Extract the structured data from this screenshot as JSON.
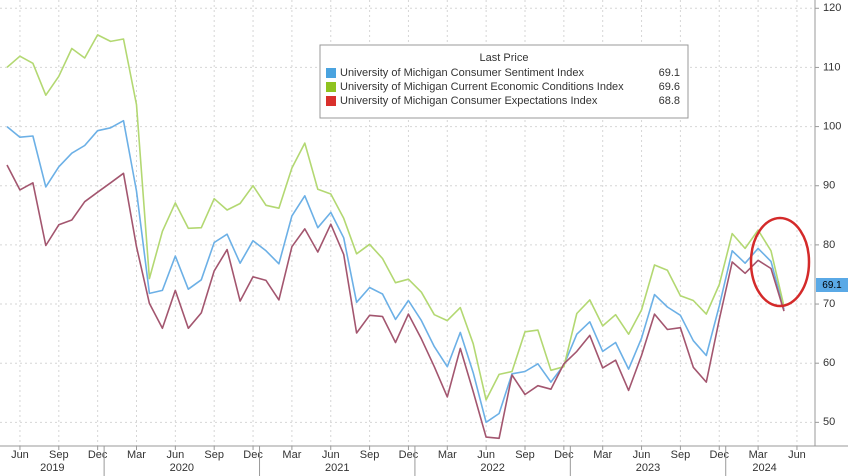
{
  "chart_data": {
    "type": "line",
    "legend_title": "Last Price",
    "x": [
      "2019-05",
      "2019-06",
      "2019-07",
      "2019-08",
      "2019-09",
      "2019-10",
      "2019-11",
      "2019-12",
      "2020-01",
      "2020-02",
      "2020-03",
      "2020-04",
      "2020-05",
      "2020-06",
      "2020-07",
      "2020-08",
      "2020-09",
      "2020-10",
      "2020-11",
      "2020-12",
      "2021-01",
      "2021-02",
      "2021-03",
      "2021-04",
      "2021-05",
      "2021-06",
      "2021-07",
      "2021-08",
      "2021-09",
      "2021-10",
      "2021-11",
      "2021-12",
      "2022-01",
      "2022-02",
      "2022-03",
      "2022-04",
      "2022-05",
      "2022-06",
      "2022-07",
      "2022-08",
      "2022-09",
      "2022-10",
      "2022-11",
      "2022-12",
      "2023-01",
      "2023-02",
      "2023-03",
      "2023-04",
      "2023-05",
      "2023-06",
      "2023-07",
      "2023-08",
      "2023-09",
      "2023-10",
      "2023-11",
      "2023-12",
      "2024-01",
      "2024-02",
      "2024-03",
      "2024-04",
      "2024-05"
    ],
    "series": [
      {
        "name": "University of Michigan Consumer Sentiment Index",
        "color": "#6cb0e6",
        "values": [
          100.0,
          98.2,
          98.4,
          89.8,
          93.2,
          95.5,
          96.8,
          99.3,
          99.8,
          101.0,
          89.1,
          71.8,
          72.3,
          78.1,
          72.5,
          74.1,
          80.4,
          81.8,
          76.9,
          80.7,
          79.0,
          76.8,
          84.9,
          88.3,
          82.9,
          85.5,
          81.2,
          70.3,
          72.8,
          71.7,
          67.4,
          70.6,
          67.2,
          62.8,
          59.4,
          65.2,
          58.4,
          50.0,
          51.5,
          58.2,
          58.6,
          59.9,
          56.8,
          59.7,
          64.9,
          67.0,
          62.0,
          63.5,
          59.0,
          64.2,
          71.6,
          69.5,
          68.1,
          63.8,
          61.3,
          69.7,
          79.0,
          76.9,
          79.4,
          77.2,
          69.1
        ]
      },
      {
        "name": "University of Michigan Current Economic Conditions Index",
        "color": "#b3d872",
        "values": [
          110.0,
          111.9,
          110.7,
          105.3,
          108.5,
          113.2,
          111.6,
          115.5,
          114.4,
          114.8,
          103.7,
          74.3,
          82.3,
          87.1,
          82.8,
          82.9,
          87.8,
          85.9,
          87.0,
          90.0,
          86.7,
          86.2,
          93.0,
          97.2,
          89.4,
          88.6,
          84.5,
          78.5,
          80.1,
          77.7,
          73.6,
          74.2,
          72.0,
          68.2,
          67.2,
          69.4,
          63.3,
          53.8,
          58.1,
          58.6,
          65.3,
          65.6,
          58.8,
          59.4,
          68.4,
          70.7,
          66.3,
          68.2,
          64.9,
          69.0,
          76.6,
          75.7,
          71.4,
          70.6,
          68.3,
          73.3,
          81.9,
          79.4,
          82.5,
          79.0,
          69.6
        ]
      },
      {
        "name": "University of Michigan Consumer Expectations Index",
        "color": "#a3566f",
        "values": [
          93.5,
          89.3,
          90.5,
          79.9,
          83.4,
          84.2,
          87.3,
          88.9,
          90.5,
          92.1,
          79.7,
          70.1,
          65.9,
          72.3,
          65.9,
          68.5,
          75.6,
          79.2,
          70.5,
          74.6,
          74.0,
          70.7,
          79.7,
          82.7,
          78.8,
          83.5,
          78.4,
          65.1,
          68.1,
          67.9,
          63.5,
          68.3,
          64.1,
          59.4,
          54.3,
          62.5,
          55.2,
          47.5,
          47.3,
          58.0,
          54.7,
          56.2,
          55.6,
          59.9,
          62.0,
          64.7,
          59.2,
          60.5,
          55.4,
          61.3,
          68.3,
          65.7,
          66.0,
          59.3,
          56.8,
          67.4,
          77.1,
          75.2,
          77.4,
          76.0,
          68.8
        ]
      }
    ],
    "legend_colors": [
      "#4aa3df",
      "#8fc31f",
      "#d9302c"
    ],
    "ylim": [
      46,
      121.4
    ],
    "yticks": [
      50,
      60,
      70,
      80,
      90,
      100,
      110,
      120
    ],
    "xticks": [
      {
        "value": "2019-06",
        "label": "Jun"
      },
      {
        "value": "2019-09",
        "label": "Sep"
      },
      {
        "value": "2019-12",
        "label": "Dec"
      },
      {
        "value": "2020-03",
        "label": "Mar"
      },
      {
        "value": "2020-06",
        "label": "Jun"
      },
      {
        "value": "2020-09",
        "label": "Sep"
      },
      {
        "value": "2020-12",
        "label": "Dec"
      },
      {
        "value": "2021-03",
        "label": "Mar"
      },
      {
        "value": "2021-06",
        "label": "Jun"
      },
      {
        "value": "2021-09",
        "label": "Sep"
      },
      {
        "value": "2021-12",
        "label": "Dec"
      },
      {
        "value": "2022-03",
        "label": "Mar"
      },
      {
        "value": "2022-06",
        "label": "Jun"
      },
      {
        "value": "2022-09",
        "label": "Sep"
      },
      {
        "value": "2022-12",
        "label": "Dec"
      },
      {
        "value": "2023-03",
        "label": "Mar"
      },
      {
        "value": "2023-06",
        "label": "Jun"
      },
      {
        "value": "2023-09",
        "label": "Sep"
      },
      {
        "value": "2023-12",
        "label": "Dec"
      },
      {
        "value": "2024-03",
        "label": "Mar"
      },
      {
        "value": "2024-06",
        "label": "Jun"
      }
    ],
    "years": [
      "2019",
      "2020",
      "2021",
      "2022",
      "2023",
      "2024"
    ],
    "grid": true
  }
}
